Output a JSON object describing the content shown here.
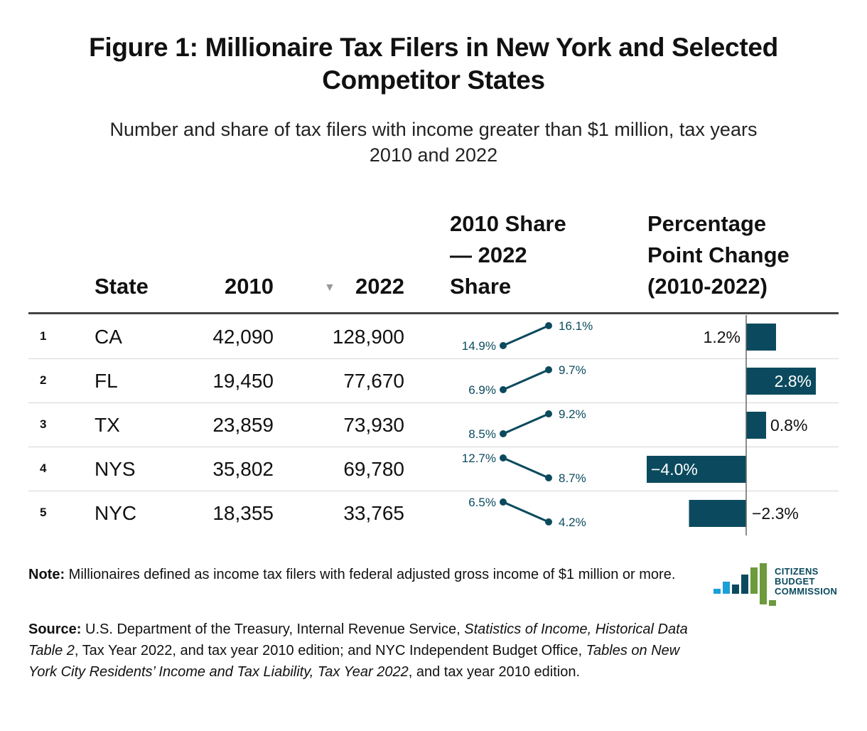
{
  "header": {
    "title_line1": "Figure 1: Millionaire Tax Filers in New York and Selected",
    "title_line2": "Competitor States",
    "subtitle_line1": "Number and share of tax filers with income greater than $1 million, tax years",
    "subtitle_line2": "2010 and 2022"
  },
  "columns": {
    "state": "State",
    "y2010": "2010",
    "y2022": "2022",
    "sort_icon": "sort-descending-icon",
    "share_line1": "2010 Share",
    "share_line2": "— 2022",
    "share_line3": "Share",
    "change_line1": "Percentage",
    "change_line2": "Point Change",
    "change_line3": "(2010-2022)"
  },
  "rows": [
    {
      "rank": "1",
      "state": "CA",
      "v2010": "42,090",
      "v2022": "128,900"
    },
    {
      "rank": "2",
      "state": "FL",
      "v2010": "19,450",
      "v2022": "77,670"
    },
    {
      "rank": "3",
      "state": "TX",
      "v2010": "23,859",
      "v2022": "73,930"
    },
    {
      "rank": "4",
      "state": "NYS",
      "v2010": "35,802",
      "v2022": "69,780"
    },
    {
      "rank": "5",
      "state": "NYC",
      "v2010": "18,355",
      "v2022": "33,765"
    }
  ],
  "chart_data": {
    "type": "table",
    "columns": [
      "State",
      "2010",
      "2022",
      "2010 Share — 2022 Share",
      "Percentage Point Change (2010-2022)"
    ],
    "slope": {
      "share_2010": [
        14.9,
        6.9,
        8.5,
        12.7,
        6.5
      ],
      "share_2022": [
        16.1,
        9.7,
        9.2,
        8.7,
        4.2
      ],
      "labels_2010": [
        "14.9%",
        "6.9%",
        "8.5%",
        "12.7%",
        "6.5%"
      ],
      "labels_2022": [
        "16.1%",
        "9.7%",
        "9.2%",
        "8.7%",
        "4.2%"
      ]
    },
    "change": {
      "values": [
        1.2,
        2.8,
        0.8,
        -4.0,
        -2.3
      ],
      "labels": [
        "1.2%",
        "2.8%",
        "0.8%",
        "−4.0%",
        "−2.3%"
      ],
      "range": [
        -4.0,
        2.8
      ]
    },
    "colors": {
      "accent": "#0b4a5e",
      "positive_bar": "#0b4a5e",
      "negative_bar": "#0b4a5e"
    }
  },
  "footer": {
    "note_label": "Note:",
    "note_text": " Millionaires defined as income tax filers with federal adjusted gross income of $1 million or more.",
    "source_label": "Source:",
    "source_p1": " U.S. Department of the Treasury, Internal Revenue Service, ",
    "source_i1": "Statistics of Income, Historical Data Table 2",
    "source_p2": ", Tax Year 2022, and tax year 2010 edition; and NYC Independent Budget Office, ",
    "source_i2": "Tables on New York City Residents’ Income and Tax Liability, Tax Year 2022",
    "source_p3": ", and tax year 2010 edition."
  },
  "logo": {
    "line1": "CITIZENS",
    "line2": "BUDGET",
    "line3": "COMMISSION",
    "colors": [
      "#1a9fd6",
      "#1a9fd6",
      "#0b4a5e",
      "#0b4a5e",
      "#6c9a3c",
      "#6c9a3c"
    ]
  }
}
